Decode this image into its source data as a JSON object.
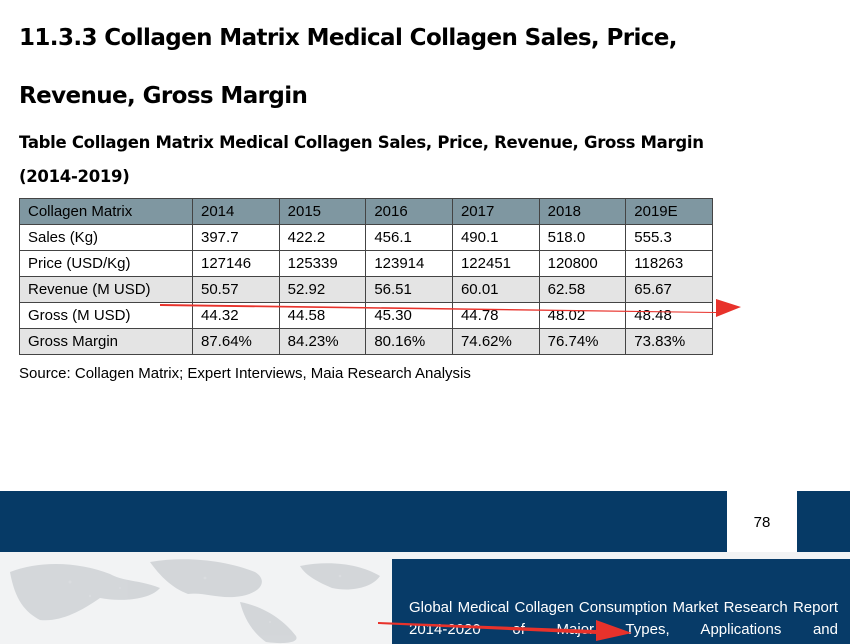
{
  "section_heading": "11.3.3 Collagen Matrix Medical Collagen Sales, Price, Revenue, Gross Margin",
  "table_title": "Table Collagen Matrix Medical Collagen Sales, Price, Revenue, Gross Margin (2014-2019)",
  "table": {
    "header": [
      "Collagen Matrix",
      "2014",
      "2015",
      "2016",
      "2017",
      "2018",
      "2019E"
    ],
    "rows": [
      [
        "Sales (Kg)",
        "397.7",
        "422.2",
        "456.1",
        "490.1",
        "518.0",
        "555.3"
      ],
      [
        "Price (USD/Kg)",
        "127146",
        "125339",
        "123914",
        "122451",
        "120800",
        "118263"
      ],
      [
        "Revenue (M USD)",
        "50.57",
        "52.92",
        "56.51",
        "60.01",
        "62.58",
        "65.67"
      ],
      [
        "Gross (M USD)",
        "44.32",
        "44.58",
        "45.30",
        "44.78",
        "48.02",
        "48.48"
      ],
      [
        "Gross Margin",
        "87.64%",
        "84.23%",
        "80.16%",
        "74.62%",
        "76.74%",
        "73.83%"
      ]
    ]
  },
  "source": "Source: Collagen Matrix; Expert Interviews, Maia Research Analysis",
  "footer": {
    "page_number": "78",
    "report_title": "Global Medical Collagen Consumption Market Research Report 2014-2020 of Major Types, Applications and"
  },
  "colors": {
    "header_bg": "#7f97a1",
    "shaded_row_bg": "#e4e4e4",
    "footer_navy": "#063a66",
    "arrow_red": "#e8322b"
  }
}
